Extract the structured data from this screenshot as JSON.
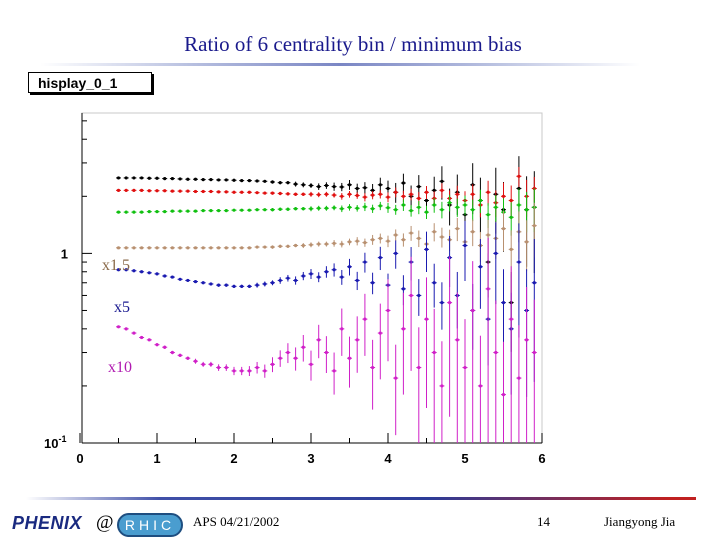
{
  "slide": {
    "title": "Ratio of 6 centrality bin / minimum bias",
    "hist_label": "hisplay_0_1",
    "footer": {
      "conference": "APS 04/21/2002",
      "page_number": "14",
      "author": "Jiangyong Jia",
      "logo_left": "PHENIX",
      "logo_at": "@",
      "logo_right": "RHIC"
    }
  },
  "chart_data": {
    "type": "scatter",
    "x_ticks": [
      "0",
      "1",
      "2",
      "3",
      "4",
      "5",
      "6"
    ],
    "y_tick_labels": [
      {
        "value": 1,
        "text": "1"
      },
      {
        "value": 0.1,
        "text": "10^-1"
      }
    ],
    "xlim": [
      0,
      6
    ],
    "ylim": [
      0.1,
      5.5
    ],
    "y_scale": "log",
    "grid": false,
    "annotations": [
      "x1.5",
      "x5",
      "x10"
    ],
    "series": [
      {
        "color": "#000000",
        "x": [
          0.5,
          0.6,
          0.7,
          0.8,
          0.9,
          1.0,
          1.1,
          1.2,
          1.3,
          1.4,
          1.5,
          1.6,
          1.7,
          1.8,
          1.9,
          2.0,
          2.1,
          2.2,
          2.3,
          2.4,
          2.5,
          2.6,
          2.7,
          2.8,
          2.9,
          3.0,
          3.1,
          3.2,
          3.3,
          3.4,
          3.5,
          3.6,
          3.7,
          3.8,
          3.9,
          4.0,
          4.1,
          4.2,
          4.3,
          4.4,
          4.5,
          4.6,
          4.7,
          4.8,
          4.9,
          5.0,
          5.1,
          5.2,
          5.3,
          5.4,
          5.5,
          5.6,
          5.7,
          5.8,
          5.9
        ],
        "y": [
          2.5,
          2.5,
          2.5,
          2.5,
          2.49,
          2.49,
          2.48,
          2.48,
          2.47,
          2.46,
          2.46,
          2.45,
          2.45,
          2.44,
          2.44,
          2.43,
          2.42,
          2.42,
          2.41,
          2.4,
          2.38,
          2.36,
          2.36,
          2.32,
          2.3,
          2.28,
          2.25,
          2.28,
          2.25,
          2.24,
          2.3,
          2.2,
          2.22,
          2.15,
          2.3,
          2.2,
          2.1,
          2.35,
          2.0,
          2.25,
          1.9,
          2.15,
          2.4,
          1.8,
          2.1,
          1.6,
          2.3,
          1.9,
          0.9,
          2.05,
          1.7,
          0.55,
          2.2,
          1.7,
          1.75
        ],
        "err_rel": [
          0.01,
          0.01,
          0.01,
          0.01,
          0.01,
          0.01,
          0.01,
          0.01,
          0.01,
          0.01,
          0.01,
          0.01,
          0.01,
          0.01,
          0.01,
          0.01,
          0.01,
          0.01,
          0.01,
          0.01,
          0.02,
          0.02,
          0.02,
          0.03,
          0.03,
          0.03,
          0.04,
          0.04,
          0.05,
          0.05,
          0.06,
          0.06,
          0.07,
          0.08,
          0.09,
          0.1,
          0.12,
          0.12,
          0.14,
          0.15,
          0.17,
          0.18,
          0.2,
          0.22,
          0.24,
          0.26,
          0.3,
          0.32,
          0.35,
          0.38,
          0.4,
          0.45,
          0.48,
          0.5,
          0.55
        ]
      },
      {
        "color": "#e01010",
        "x": [
          0.5,
          0.6,
          0.7,
          0.8,
          0.9,
          1.0,
          1.1,
          1.2,
          1.3,
          1.4,
          1.5,
          1.6,
          1.7,
          1.8,
          1.9,
          2.0,
          2.1,
          2.2,
          2.3,
          2.4,
          2.5,
          2.6,
          2.7,
          2.8,
          2.9,
          3.0,
          3.1,
          3.2,
          3.3,
          3.4,
          3.5,
          3.6,
          3.7,
          3.8,
          3.9,
          4.0,
          4.1,
          4.2,
          4.3,
          4.4,
          4.5,
          4.6,
          4.7,
          4.8,
          4.9,
          5.0,
          5.1,
          5.2,
          5.3,
          5.4,
          5.5,
          5.6,
          5.7,
          5.8,
          5.9
        ],
        "y": [
          2.15,
          2.15,
          2.15,
          2.15,
          2.14,
          2.14,
          2.14,
          2.13,
          2.13,
          2.13,
          2.12,
          2.12,
          2.12,
          2.11,
          2.11,
          2.1,
          2.1,
          2.1,
          2.09,
          2.08,
          2.08,
          2.07,
          2.06,
          2.05,
          2.05,
          2.05,
          2.04,
          2.05,
          2.03,
          2.0,
          2.05,
          2.02,
          1.98,
          2.03,
          2.05,
          1.98,
          2.1,
          2.0,
          2.05,
          1.95,
          2.1,
          1.95,
          2.15,
          1.95,
          2.05,
          1.9,
          2.05,
          1.8,
          2.1,
          1.85,
          2.0,
          1.9,
          2.55,
          2.0,
          2.2
        ],
        "err_rel": [
          0.01,
          0.01,
          0.01,
          0.01,
          0.01,
          0.01,
          0.01,
          0.01,
          0.01,
          0.01,
          0.01,
          0.01,
          0.01,
          0.01,
          0.01,
          0.01,
          0.01,
          0.01,
          0.01,
          0.01,
          0.02,
          0.02,
          0.02,
          0.02,
          0.02,
          0.03,
          0.03,
          0.03,
          0.03,
          0.04,
          0.04,
          0.04,
          0.05,
          0.05,
          0.05,
          0.06,
          0.06,
          0.07,
          0.07,
          0.08,
          0.08,
          0.09,
          0.09,
          0.1,
          0.11,
          0.12,
          0.13,
          0.14,
          0.15,
          0.16,
          0.18,
          0.2,
          0.12,
          0.22,
          0.15
        ]
      },
      {
        "color": "#10c010",
        "x": [
          0.5,
          0.6,
          0.7,
          0.8,
          0.9,
          1.0,
          1.1,
          1.2,
          1.3,
          1.4,
          1.5,
          1.6,
          1.7,
          1.8,
          1.9,
          2.0,
          2.1,
          2.2,
          2.3,
          2.4,
          2.5,
          2.6,
          2.7,
          2.8,
          2.9,
          3.0,
          3.1,
          3.2,
          3.3,
          3.4,
          3.5,
          3.6,
          3.7,
          3.8,
          3.9,
          4.0,
          4.1,
          4.2,
          4.3,
          4.4,
          4.5,
          4.6,
          4.7,
          4.8,
          4.9,
          5.0,
          5.1,
          5.2,
          5.3,
          5.4,
          5.5,
          5.6,
          5.7,
          5.8,
          5.9
        ],
        "y": [
          1.65,
          1.65,
          1.65,
          1.65,
          1.66,
          1.66,
          1.66,
          1.67,
          1.67,
          1.67,
          1.67,
          1.68,
          1.68,
          1.68,
          1.68,
          1.69,
          1.69,
          1.69,
          1.7,
          1.7,
          1.7,
          1.71,
          1.71,
          1.72,
          1.72,
          1.72,
          1.73,
          1.73,
          1.74,
          1.72,
          1.75,
          1.73,
          1.76,
          1.72,
          1.78,
          1.74,
          1.7,
          1.8,
          1.68,
          1.75,
          1.65,
          1.8,
          1.7,
          1.85,
          1.75,
          1.8,
          1.7,
          1.9,
          1.6,
          1.75,
          1.65,
          1.55,
          1.8,
          1.7,
          1.75
        ],
        "err_rel": [
          0.01,
          0.01,
          0.01,
          0.01,
          0.01,
          0.01,
          0.01,
          0.01,
          0.01,
          0.01,
          0.01,
          0.01,
          0.01,
          0.01,
          0.01,
          0.01,
          0.01,
          0.01,
          0.01,
          0.01,
          0.02,
          0.02,
          0.02,
          0.02,
          0.02,
          0.03,
          0.03,
          0.03,
          0.03,
          0.04,
          0.04,
          0.04,
          0.05,
          0.05,
          0.05,
          0.06,
          0.06,
          0.07,
          0.07,
          0.08,
          0.08,
          0.09,
          0.1,
          0.1,
          0.11,
          0.12,
          0.13,
          0.14,
          0.15,
          0.16,
          0.18,
          0.2,
          0.22,
          0.24,
          0.26
        ]
      },
      {
        "color": "#b89070",
        "x": [
          0.5,
          0.6,
          0.7,
          0.8,
          0.9,
          1.0,
          1.1,
          1.2,
          1.3,
          1.4,
          1.5,
          1.6,
          1.7,
          1.8,
          1.9,
          2.0,
          2.1,
          2.2,
          2.3,
          2.4,
          2.5,
          2.6,
          2.7,
          2.8,
          2.9,
          3.0,
          3.1,
          3.2,
          3.3,
          3.4,
          3.5,
          3.6,
          3.7,
          3.8,
          3.9,
          4.0,
          4.1,
          4.2,
          4.3,
          4.4,
          4.5,
          4.6,
          4.7,
          4.8,
          4.9,
          5.0,
          5.1,
          5.2,
          5.3,
          5.4,
          5.5,
          5.6,
          5.7,
          5.8,
          5.9
        ],
        "y": [
          1.07,
          1.07,
          1.07,
          1.07,
          1.07,
          1.07,
          1.07,
          1.07,
          1.07,
          1.07,
          1.07,
          1.07,
          1.07,
          1.07,
          1.07,
          1.07,
          1.07,
          1.07,
          1.08,
          1.08,
          1.08,
          1.09,
          1.09,
          1.1,
          1.1,
          1.11,
          1.12,
          1.12,
          1.13,
          1.12,
          1.15,
          1.16,
          1.14,
          1.18,
          1.2,
          1.16,
          1.25,
          1.18,
          1.28,
          1.2,
          1.12,
          1.3,
          1.22,
          1.18,
          1.35,
          1.15,
          1.3,
          1.1,
          1.25,
          1.2,
          1.35,
          1.05,
          1.3,
          1.15,
          1.4
        ],
        "err_rel": [
          0.01,
          0.01,
          0.01,
          0.01,
          0.01,
          0.01,
          0.01,
          0.01,
          0.01,
          0.01,
          0.01,
          0.01,
          0.01,
          0.01,
          0.01,
          0.01,
          0.01,
          0.01,
          0.01,
          0.01,
          0.02,
          0.02,
          0.02,
          0.02,
          0.03,
          0.03,
          0.03,
          0.03,
          0.04,
          0.04,
          0.04,
          0.05,
          0.05,
          0.06,
          0.06,
          0.07,
          0.07,
          0.08,
          0.09,
          0.1,
          0.1,
          0.11,
          0.12,
          0.13,
          0.14,
          0.15,
          0.16,
          0.18,
          0.2,
          0.22,
          0.24,
          0.26,
          0.28,
          0.3,
          0.32
        ]
      },
      {
        "color": "#1a1ab0",
        "x": [
          0.5,
          0.6,
          0.7,
          0.8,
          0.9,
          1.0,
          1.1,
          1.2,
          1.3,
          1.4,
          1.5,
          1.6,
          1.7,
          1.8,
          1.9,
          2.0,
          2.1,
          2.2,
          2.3,
          2.4,
          2.5,
          2.6,
          2.7,
          2.8,
          2.9,
          3.0,
          3.1,
          3.2,
          3.3,
          3.4,
          3.5,
          3.6,
          3.7,
          3.8,
          3.9,
          4.0,
          4.1,
          4.2,
          4.3,
          4.4,
          4.5,
          4.6,
          4.7,
          4.8,
          4.9,
          5.0,
          5.1,
          5.2,
          5.3,
          5.4,
          5.5,
          5.6,
          5.7,
          5.8,
          5.9
        ],
        "y": [
          0.82,
          0.82,
          0.81,
          0.8,
          0.79,
          0.78,
          0.76,
          0.75,
          0.73,
          0.72,
          0.71,
          0.7,
          0.69,
          0.68,
          0.68,
          0.67,
          0.67,
          0.67,
          0.68,
          0.69,
          0.7,
          0.72,
          0.74,
          0.72,
          0.76,
          0.78,
          0.75,
          0.8,
          0.82,
          0.75,
          0.85,
          0.72,
          0.9,
          0.7,
          0.95,
          0.68,
          1.0,
          0.65,
          0.9,
          0.6,
          1.05,
          0.7,
          0.55,
          0.95,
          0.6,
          1.1,
          0.5,
          0.85,
          0.45,
          1.0,
          0.55,
          0.4,
          0.9,
          0.5,
          0.7
        ],
        "err_rel": [
          0.01,
          0.01,
          0.01,
          0.01,
          0.01,
          0.01,
          0.01,
          0.01,
          0.01,
          0.01,
          0.01,
          0.01,
          0.01,
          0.02,
          0.02,
          0.02,
          0.02,
          0.02,
          0.03,
          0.03,
          0.03,
          0.04,
          0.04,
          0.05,
          0.05,
          0.06,
          0.06,
          0.07,
          0.08,
          0.09,
          0.1,
          0.11,
          0.12,
          0.13,
          0.14,
          0.15,
          0.17,
          0.18,
          0.2,
          0.22,
          0.24,
          0.26,
          0.28,
          0.3,
          0.33,
          0.35,
          0.38,
          0.4,
          0.43,
          0.46,
          0.5,
          0.55,
          0.6,
          0.65,
          0.7
        ]
      },
      {
        "color": "#d020c8",
        "x": [
          0.5,
          0.6,
          0.7,
          0.8,
          0.9,
          1.0,
          1.1,
          1.2,
          1.3,
          1.4,
          1.5,
          1.6,
          1.7,
          1.8,
          1.9,
          2.0,
          2.1,
          2.2,
          2.3,
          2.4,
          2.5,
          2.6,
          2.7,
          2.8,
          2.9,
          3.0,
          3.1,
          3.2,
          3.3,
          3.4,
          3.5,
          3.6,
          3.7,
          3.8,
          3.9,
          4.0,
          4.1,
          4.2,
          4.3,
          4.4,
          4.5,
          4.6,
          4.7,
          4.8,
          4.9,
          5.0,
          5.1,
          5.2,
          5.3,
          5.4,
          5.5,
          5.6,
          5.7,
          5.8,
          5.9
        ],
        "y": [
          0.41,
          0.4,
          0.38,
          0.36,
          0.35,
          0.33,
          0.32,
          0.3,
          0.29,
          0.28,
          0.27,
          0.26,
          0.26,
          0.25,
          0.25,
          0.24,
          0.24,
          0.24,
          0.25,
          0.24,
          0.26,
          0.28,
          0.3,
          0.28,
          0.32,
          0.26,
          0.35,
          0.3,
          0.24,
          0.4,
          0.28,
          0.35,
          0.45,
          0.25,
          0.38,
          0.5,
          0.22,
          0.4,
          0.6,
          0.25,
          0.45,
          0.3,
          0.2,
          0.55,
          0.35,
          0.25,
          0.5,
          0.2,
          0.65,
          0.3,
          0.18,
          0.45,
          0.22,
          0.35,
          0.3
        ],
        "err_rel": [
          0.01,
          0.01,
          0.01,
          0.01,
          0.01,
          0.02,
          0.02,
          0.02,
          0.02,
          0.02,
          0.03,
          0.03,
          0.03,
          0.04,
          0.04,
          0.05,
          0.05,
          0.06,
          0.07,
          0.08,
          0.09,
          0.1,
          0.12,
          0.14,
          0.16,
          0.18,
          0.2,
          0.22,
          0.25,
          0.28,
          0.3,
          0.33,
          0.36,
          0.4,
          0.43,
          0.46,
          0.5,
          0.55,
          0.6,
          0.63,
          0.66,
          0.7,
          0.72,
          0.75,
          0.78,
          0.8,
          0.82,
          0.84,
          0.86,
          0.88,
          0.9,
          0.9,
          0.9,
          0.9,
          0.9
        ]
      }
    ]
  }
}
